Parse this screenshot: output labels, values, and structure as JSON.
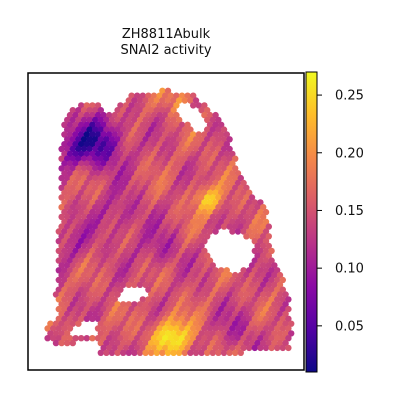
{
  "title_line1": "ZH8811Abulk",
  "title_line2": "SNAI2 activity",
  "chart_data": {
    "type": "heatmap",
    "title": "ZH8811Abulk SNAI2 activity",
    "subtitle": "",
    "xlabel": "",
    "ylabel": "",
    "colormap": "plasma",
    "colorbar": {
      "range": [
        0.01,
        0.27
      ],
      "ticks": [
        0.05,
        0.1,
        0.15,
        0.2,
        0.25
      ],
      "tick_labels": [
        "0.05",
        "0.10",
        "0.15",
        "0.20",
        "0.25"
      ]
    },
    "axes_ticks_visible": false,
    "grid": false,
    "legend": "none",
    "description_of_values": "spatial spots, values 0.01–0.27; mostly 0.12–0.18, low cluster top-left (~0.03), hot spots bottom-center (~0.27) and right-center (~0.24)"
  },
  "colors": {
    "cmap_stops": [
      "#0d0887",
      "#5302a3",
      "#8b0aa5",
      "#b83289",
      "#db5c68",
      "#f48849",
      "#febd2a",
      "#f0f921"
    ]
  }
}
